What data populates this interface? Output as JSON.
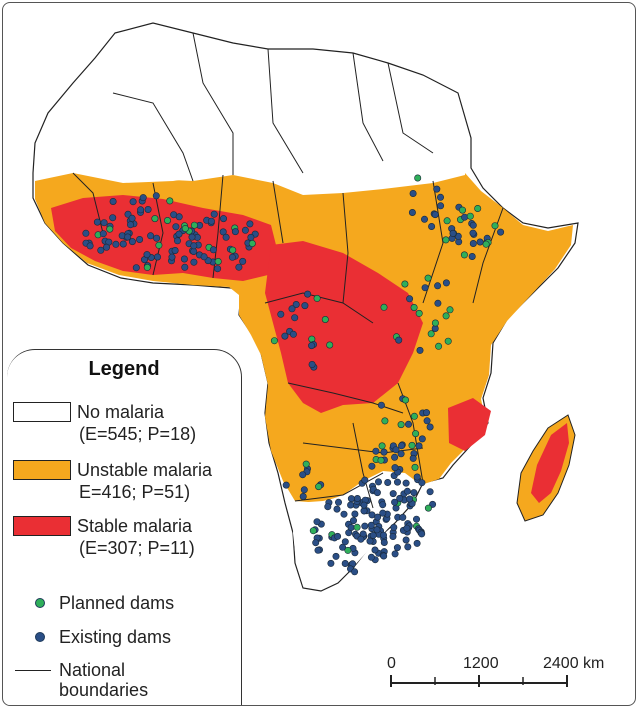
{
  "legend": {
    "title": "Legend",
    "items": [
      {
        "label": "No malaria",
        "sub": "(E=545; P=18)",
        "color": "#ffffff"
      },
      {
        "label": "Unstable malaria",
        "sub": "E=416; P=51)",
        "color": "#f5a81e"
      },
      {
        "label": "Stable malaria",
        "sub": "(E=307; P=11)",
        "color": "#ea2f34"
      }
    ],
    "planned_label": "Planned dams",
    "planned_color": "#2faf5a",
    "existing_label": "Existing dams",
    "existing_color": "#2a4e86",
    "boundaries_label_1": "National",
    "boundaries_label_2": "boundaries"
  },
  "scale": {
    "labels": [
      "0",
      "1200",
      "2400 km"
    ]
  },
  "colors": {
    "land_none": "#ffffff",
    "unstable": "#f5a81e",
    "stable": "#ea2f34",
    "border": "#222222"
  }
}
